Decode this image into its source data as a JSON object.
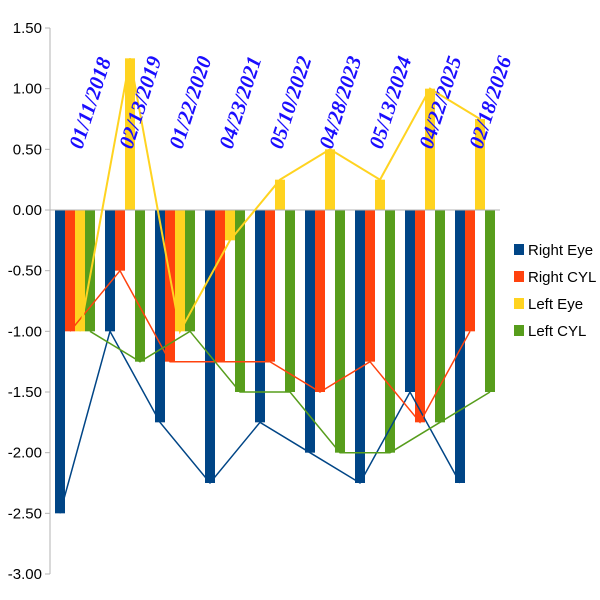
{
  "chart_data": {
    "type": "bar",
    "title": "",
    "xlabel": "",
    "ylabel": "",
    "ylim": [
      -3.0,
      1.5
    ],
    "ytick_step": 0.5,
    "ytick_labels": [
      "1.50",
      "1.00",
      "0.50",
      "0.00",
      "-0.50",
      "-1.00",
      "-1.50",
      "-2.00",
      "-2.50",
      "-3.00"
    ],
    "grid": false,
    "legend_position": "right",
    "categories": [
      "01/11/2018",
      "02/13/2019",
      "01/22/2020",
      "04/23/2021",
      "05/10/2022",
      "04/28/2023",
      "05/13/2024",
      "04/22/2025",
      "02/18/2026"
    ],
    "series": [
      {
        "name": "Right Eye",
        "color": "#004586",
        "values": [
          -2.5,
          -1.0,
          -1.75,
          -2.25,
          -1.75,
          -2.0,
          -2.25,
          -1.5,
          -2.25
        ]
      },
      {
        "name": "Right CYL",
        "color": "#ff420e",
        "values": [
          -1.0,
          -0.5,
          -1.25,
          -1.25,
          -1.25,
          -1.5,
          -1.25,
          -1.75,
          -1.0
        ]
      },
      {
        "name": "Left Eye",
        "color": "#ffd320",
        "values": [
          -1.0,
          1.25,
          -1.0,
          -0.25,
          0.25,
          0.5,
          0.25,
          1.0,
          0.75
        ]
      },
      {
        "name": "Left CYL",
        "color": "#579d1c",
        "values": [
          -1.0,
          -1.25,
          -1.0,
          -1.5,
          -1.5,
          -2.0,
          -2.0,
          -1.75,
          -1.5
        ]
      }
    ]
  }
}
